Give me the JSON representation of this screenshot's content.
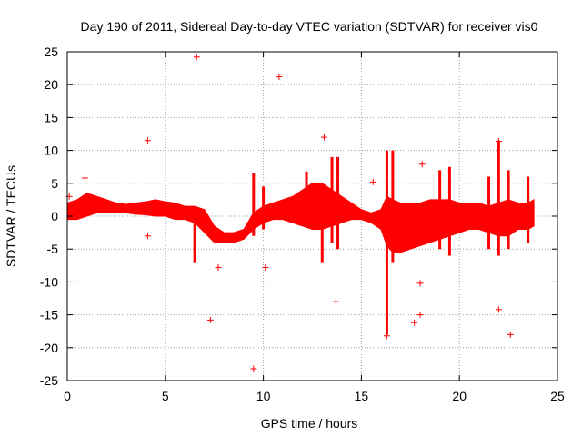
{
  "chart_data": {
    "type": "scatter",
    "title": "Day 190 of 2011, Sidereal Day-to-day VTEC variation (SDTVAR) for receiver vis0",
    "xlabel": "GPS time / hours",
    "ylabel": "SDTVAR / TECUs",
    "xlim": [
      0,
      25
    ],
    "ylim": [
      -25,
      25
    ],
    "xticks": [
      0,
      5,
      10,
      15,
      20,
      25
    ],
    "yticks": [
      -25,
      -20,
      -15,
      -10,
      -5,
      0,
      5,
      10,
      15,
      20,
      25
    ],
    "grid": true,
    "marker": "+",
    "series_color": "#ff0000",
    "band": {
      "name": "SDTVAR (dense)",
      "x": [
        0.0,
        0.5,
        1.0,
        1.5,
        2.0,
        2.5,
        3.0,
        3.5,
        4.0,
        4.5,
        5.0,
        5.5,
        6.0,
        6.5,
        7.0,
        7.5,
        8.0,
        8.5,
        9.0,
        9.5,
        10.0,
        10.5,
        11.0,
        11.5,
        12.0,
        12.5,
        13.0,
        13.5,
        14.0,
        14.5,
        15.0,
        15.5,
        16.0,
        16.3,
        16.6,
        17.0,
        17.5,
        18.0,
        18.5,
        19.0,
        19.5,
        20.0,
        20.5,
        21.0,
        21.5,
        22.0,
        22.5,
        23.0,
        23.5,
        23.8
      ],
      "upper": [
        2.0,
        2.5,
        3.5,
        3.0,
        2.5,
        2.0,
        1.8,
        2.0,
        2.2,
        2.5,
        2.2,
        2.0,
        1.5,
        1.5,
        1.0,
        -1.5,
        -2.5,
        -2.5,
        -2.0,
        0.5,
        1.5,
        2.0,
        2.5,
        3.0,
        4.0,
        5.0,
        5.0,
        4.0,
        3.0,
        2.0,
        1.0,
        0.5,
        1.0,
        3.0,
        2.5,
        2.0,
        2.0,
        2.0,
        2.5,
        2.5,
        2.5,
        2.0,
        2.0,
        2.0,
        1.5,
        2.0,
        2.5,
        2.0,
        2.0,
        2.5
      ],
      "lower": [
        -0.5,
        -0.5,
        0.0,
        0.5,
        0.5,
        0.5,
        0.5,
        0.3,
        0.2,
        0.0,
        0.0,
        -0.5,
        -0.5,
        -1.0,
        -2.5,
        -4.0,
        -4.0,
        -4.0,
        -3.5,
        -2.0,
        -1.0,
        -0.5,
        -0.5,
        -1.0,
        -1.5,
        -2.0,
        -2.0,
        -1.5,
        -1.0,
        -0.5,
        -0.5,
        -1.0,
        -2.0,
        -4.5,
        -5.5,
        -5.5,
        -5.0,
        -4.5,
        -4.0,
        -3.5,
        -3.0,
        -2.5,
        -2.0,
        -2.0,
        -2.5,
        -3.0,
        -3.0,
        -2.0,
        -2.0,
        -1.5
      ]
    },
    "spikes": [
      {
        "x": 6.5,
        "y0": -1.0,
        "y1": -7.0
      },
      {
        "x": 9.5,
        "y0": -3.0,
        "y1": 6.5
      },
      {
        "x": 10.0,
        "y0": -2.0,
        "y1": 4.5
      },
      {
        "x": 12.2,
        "y0": 3.0,
        "y1": 6.8
      },
      {
        "x": 13.0,
        "y0": -7.0,
        "y1": 4.0
      },
      {
        "x": 13.5,
        "y0": -4.0,
        "y1": 9.0
      },
      {
        "x": 13.8,
        "y0": -5.0,
        "y1": 9.0
      },
      {
        "x": 16.3,
        "y0": -18.0,
        "y1": 10.0
      },
      {
        "x": 16.6,
        "y0": -7.0,
        "y1": 10.0
      },
      {
        "x": 19.0,
        "y0": -5.0,
        "y1": 7.0
      },
      {
        "x": 19.5,
        "y0": -6.0,
        "y1": 7.5
      },
      {
        "x": 21.5,
        "y0": -5.0,
        "y1": 6.0
      },
      {
        "x": 22.0,
        "y0": -6.0,
        "y1": 11.5
      },
      {
        "x": 22.5,
        "y0": -5.0,
        "y1": 7.0
      },
      {
        "x": 23.5,
        "y0": -4.0,
        "y1": 6.0
      }
    ],
    "outliers": [
      [
        0.1,
        3.0
      ],
      [
        0.9,
        5.8
      ],
      [
        4.1,
        11.5
      ],
      [
        4.1,
        -3.0
      ],
      [
        6.6,
        24.2
      ],
      [
        7.3,
        -15.8
      ],
      [
        7.7,
        -7.8
      ],
      [
        9.5,
        -23.2
      ],
      [
        10.1,
        -7.8
      ],
      [
        10.8,
        21.2
      ],
      [
        13.1,
        12.0
      ],
      [
        13.7,
        -13.0
      ],
      [
        15.6,
        5.2
      ],
      [
        16.3,
        -18.2
      ],
      [
        17.7,
        -16.2
      ],
      [
        18.0,
        -15.0
      ],
      [
        18.1,
        7.9
      ],
      [
        18.0,
        -10.2
      ],
      [
        22.0,
        -14.2
      ],
      [
        22.0,
        11.4
      ],
      [
        22.6,
        -18.0
      ]
    ]
  }
}
